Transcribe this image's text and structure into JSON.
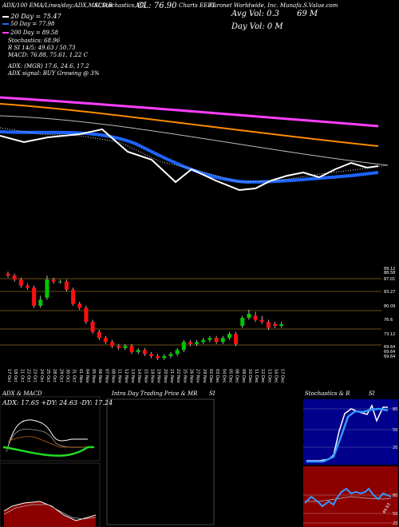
{
  "header": {
    "top_line": [
      "ADX/100  EMA/Lines/day:ADX,MACD,B",
      "SI,Stochastics,MR",
      "CL: 76.90",
      "Charts EEFT",
      "Euronet Worldwide, Inc. Munafa.S.Value.com",
      "Avg Vol: 0.3",
      "69 M"
    ],
    "ma_lines": [
      "20 Day = 75.47",
      "50 Day = 77.98",
      "200 Day = 89.58"
    ],
    "stochastics": "Stochastics: 68.96",
    "rsi": "R      SI 14/5: 49.63 / 50.73",
    "macd": "MACD: 76.88, 75.61, 1.22  C",
    "day_vol": "Day Vol: 0   M",
    "adx": "ADX:                (MGR) 17.6,  24.6,  17.2",
    "adx_signal": "ADX  signal:                   BUY Growing @ 3%"
  },
  "price_axis": [
    "89.12",
    "88.58",
    "87.01",
    "83.27",
    "80.09",
    "76.6",
    "73.12",
    "69.64",
    "69.64",
    "69.64"
  ],
  "dates": [
    "17 Oct",
    "18 Oct",
    "21 Oct",
    "22 Oct",
    "23 Oct",
    "24 Oct",
    "25 Oct",
    "28 Oct",
    "29 Oct",
    "30 Oct",
    "31 Oct",
    "01 Nov",
    "04 Nov",
    "05 Nov",
    "06 Nov",
    "07 Nov",
    "08 Nov",
    "11 Nov",
    "12 Nov",
    "13 Nov",
    "14 Nov",
    "15 Nov",
    "18 Nov",
    "19 Nov",
    "20 Nov",
    "21 Nov",
    "22 Nov",
    "25 Nov",
    "26 Nov",
    "27 Nov",
    "29 Nov",
    "02 Dec",
    "03 Dec",
    "04 Dec",
    "05 Dec",
    "06 Dec",
    "09 Dec",
    "10 Dec",
    "11 Dec",
    "12 Dec",
    "13 Dec",
    "16 Dec",
    "17 Dec"
  ],
  "panels": {
    "adx_title": "ADX  & MACD",
    "adx_values": "ADX: 17.65  +DY: 24.63  -DY: 17.24",
    "intraday_title": "Intra  Day Trading Price  & MR",
    "intraday_si": "SI",
    "stoch_title": "Stochastics & R",
    "stoch_si": "SI",
    "stoch_axis": [
      "80",
      "50",
      "20"
    ],
    "rsi_axis": [
      "80",
      "50",
      "20"
    ],
    "rsi_tag": "49.63"
  },
  "colors": {
    "up": "#00c800",
    "down": "#ff1010",
    "ma20": "#ffffff",
    "ma50": "#1e64ff",
    "ma100": "#ff8c00",
    "ma200": "#ff40ff",
    "stoch_bg": "#00008c",
    "rsi_bg": "#8c0000"
  },
  "chart_data": {
    "type": "candlestick",
    "x": [
      "17 Oct",
      "18 Oct",
      "21 Oct",
      "22 Oct",
      "23 Oct",
      "24 Oct",
      "25 Oct",
      "28 Oct",
      "29 Oct",
      "30 Oct",
      "31 Oct",
      "01 Nov",
      "04 Nov",
      "05 Nov",
      "06 Nov",
      "07 Nov",
      "08 Nov",
      "11 Nov",
      "12 Nov",
      "13 Nov",
      "14 Nov",
      "15 Nov",
      "18 Nov",
      "19 Nov",
      "20 Nov",
      "21 Nov",
      "22 Nov",
      "25 Nov",
      "26 Nov",
      "27 Nov",
      "29 Nov",
      "02 Dec",
      "03 Dec",
      "04 Dec",
      "05 Dec",
      "06 Dec",
      "09 Dec",
      "10 Dec",
      "11 Dec",
      "12 Dec",
      "13 Dec",
      "16 Dec",
      "17 Dec"
    ],
    "open": [
      89.5,
      89.0,
      88.0,
      86.5,
      86.0,
      81.5,
      83.5,
      88.0,
      87.5,
      87.5,
      85.5,
      82.0,
      81.0,
      77.5,
      75.0,
      73.5,
      72.5,
      71.5,
      71.0,
      71.5,
      70.0,
      70.5,
      69.5,
      69.0,
      68.5,
      69.0,
      69.5,
      70.5,
      72.5,
      72.0,
      72.5,
      73.0,
      73.5,
      72.5,
      73.5,
      74.5,
      76.5,
      78.5,
      79.0,
      78.0,
      77.5,
      77.0,
      76.5
    ],
    "close": [
      89.0,
      88.0,
      86.5,
      86.0,
      81.5,
      83.0,
      88.0,
      87.5,
      87.5,
      85.5,
      82.0,
      81.0,
      77.5,
      75.0,
      73.5,
      72.5,
      71.5,
      71.0,
      71.5,
      70.0,
      70.5,
      69.5,
      69.0,
      68.5,
      69.0,
      69.5,
      70.5,
      72.5,
      72.0,
      72.5,
      73.0,
      73.5,
      72.5,
      73.5,
      74.5,
      72.0,
      78.5,
      79.5,
      78.0,
      77.5,
      76.0,
      76.5,
      76.9
    ],
    "high": [
      90.0,
      89.5,
      88.5,
      87.0,
      86.5,
      84.0,
      89.0,
      88.5,
      88.0,
      88.0,
      86.0,
      82.5,
      81.5,
      78.0,
      75.5,
      74.0,
      73.0,
      72.0,
      72.0,
      72.0,
      71.0,
      71.0,
      70.0,
      69.5,
      69.5,
      70.0,
      71.0,
      73.0,
      73.0,
      73.0,
      73.5,
      74.0,
      74.0,
      74.0,
      75.0,
      75.0,
      79.0,
      80.5,
      80.0,
      79.0,
      78.0,
      77.5,
      77.5
    ],
    "low": [
      88.5,
      87.5,
      86.0,
      85.5,
      81.0,
      81.0,
      83.0,
      87.0,
      87.0,
      85.0,
      81.5,
      80.5,
      77.0,
      74.5,
      73.0,
      72.0,
      71.0,
      70.5,
      70.5,
      69.5,
      69.5,
      69.0,
      68.5,
      68.0,
      68.0,
      68.5,
      69.0,
      70.0,
      71.5,
      71.5,
      72.0,
      72.5,
      72.0,
      72.0,
      73.0,
      71.5,
      76.0,
      78.0,
      77.5,
      77.0,
      75.5,
      76.0,
      76.0
    ],
    "price_range": [
      67,
      92
    ]
  }
}
